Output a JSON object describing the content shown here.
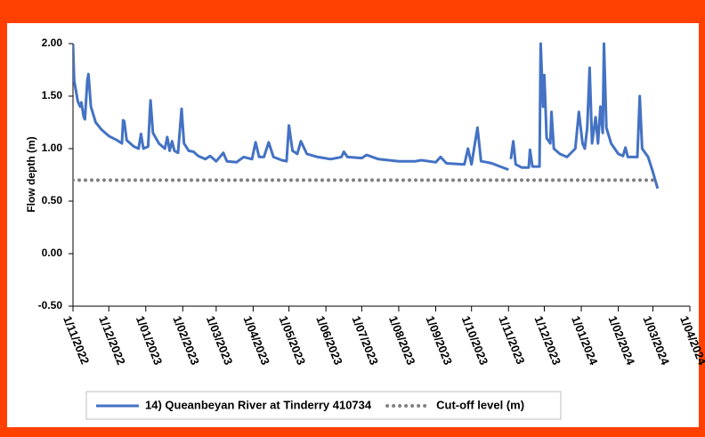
{
  "chart_data": {
    "type": "line",
    "y_label": "Flow depth (m)",
    "xlim": [
      "2022-11-01",
      "2024-04-01"
    ],
    "xticks": [
      {
        "value": "2022-11-01",
        "label": "1/11/2022"
      },
      {
        "value": "2022-12-01",
        "label": "1/12/2022"
      },
      {
        "value": "2023-01-01",
        "label": "1/01/2023"
      },
      {
        "value": "2023-02-01",
        "label": "1/02/2023"
      },
      {
        "value": "2023-03-01",
        "label": "1/03/2023"
      },
      {
        "value": "2023-04-01",
        "label": "1/04/2023"
      },
      {
        "value": "2023-05-01",
        "label": "1/05/2023"
      },
      {
        "value": "2023-06-01",
        "label": "1/06/2023"
      },
      {
        "value": "2023-07-01",
        "label": "1/07/2023"
      },
      {
        "value": "2023-08-01",
        "label": "1/08/2023"
      },
      {
        "value": "2023-09-01",
        "label": "1/09/2023"
      },
      {
        "value": "2023-10-01",
        "label": "1/10/2023"
      },
      {
        "value": "2023-11-01",
        "label": "1/11/2023"
      },
      {
        "value": "2023-12-01",
        "label": "1/12/2023"
      },
      {
        "value": "2024-01-01",
        "label": "1/01/2024"
      },
      {
        "value": "2024-02-01",
        "label": "1/02/2024"
      },
      {
        "value": "2024-03-01",
        "label": "1/03/2024"
      },
      {
        "value": "2024-04-01",
        "label": "1/04/2024"
      }
    ],
    "ylim": [
      -0.5,
      2.0
    ],
    "yticks": [
      {
        "value": -0.5,
        "label": "-0.50"
      },
      {
        "value": 0,
        "label": "0.00"
      },
      {
        "value": 0.5,
        "label": "0.50"
      },
      {
        "value": 1,
        "label": "1.00"
      },
      {
        "value": 1.5,
        "label": "1.50"
      },
      {
        "value": 2,
        "label": "2.00"
      }
    ],
    "grid": false,
    "legend": "bottom",
    "series": [
      {
        "name": "14) Queanbeyan River at Tinderry 410734",
        "color": "#4472c4",
        "style": "solid",
        "x": [
          "2022-11-01",
          "2022-11-02",
          "2022-11-05",
          "2022-11-07",
          "2022-11-08",
          "2022-11-10",
          "2022-11-11",
          "2022-11-13",
          "2022-11-14",
          "2022-11-16",
          "2022-11-20",
          "2022-11-25",
          "2022-12-01",
          "2022-12-08",
          "2022-12-12",
          "2022-12-13",
          "2022-12-14",
          "2022-12-16",
          "2022-12-22",
          "2022-12-26",
          "2022-12-28",
          "2022-12-30",
          "2023-01-03",
          "2023-01-05",
          "2023-01-07",
          "2023-01-12",
          "2023-01-17",
          "2023-01-19",
          "2023-01-21",
          "2023-01-23",
          "2023-01-25",
          "2023-01-28",
          "2023-01-31",
          "2023-02-02",
          "2023-02-06",
          "2023-02-10",
          "2023-02-14",
          "2023-02-20",
          "2023-02-24",
          "2023-03-01",
          "2023-03-07",
          "2023-03-10",
          "2023-03-18",
          "2023-03-24",
          "2023-03-31",
          "2023-04-03",
          "2023-04-06",
          "2023-04-10",
          "2023-04-14",
          "2023-04-18",
          "2023-04-25",
          "2023-04-29",
          "2023-05-01",
          "2023-05-04",
          "2023-05-08",
          "2023-05-11",
          "2023-05-16",
          "2023-05-25",
          "2023-06-05",
          "2023-06-14",
          "2023-06-16",
          "2023-06-19",
          "2023-07-01",
          "2023-07-05",
          "2023-07-15",
          "2023-08-01",
          "2023-08-15",
          "2023-08-20",
          "2023-09-01",
          "2023-09-05",
          "2023-09-10",
          "2023-09-25",
          "2023-09-28",
          "2023-10-01",
          "2023-10-06",
          "2023-10-09",
          "2023-10-14",
          "2023-10-18",
          "2023-10-25",
          "2023-11-01",
          "2023-11-02",
          "2023-11-03",
          "2023-11-05",
          "2023-11-07",
          "2023-11-12",
          "2023-11-18",
          "2023-11-19",
          "2023-11-21",
          "2023-11-27",
          "2023-11-28",
          "2023-11-30",
          "2023-12-01",
          "2023-12-03",
          "2023-12-06",
          "2023-12-07",
          "2023-12-09",
          "2023-12-14",
          "2023-12-20",
          "2023-12-27",
          "2023-12-30",
          "2024-01-02",
          "2024-01-04",
          "2024-01-06",
          "2024-01-08",
          "2024-01-10",
          "2024-01-13",
          "2024-01-15",
          "2024-01-17",
          "2024-01-19",
          "2024-01-20",
          "2024-01-22",
          "2024-01-26",
          "2024-02-01",
          "2024-02-05",
          "2024-02-07",
          "2024-02-09",
          "2024-02-17",
          "2024-02-19",
          "2024-02-21",
          "2024-02-26",
          "2024-03-01",
          "2024-03-05"
        ],
        "values": [
          2.0,
          1.65,
          1.45,
          1.4,
          1.44,
          1.3,
          1.28,
          1.65,
          1.71,
          1.4,
          1.25,
          1.18,
          1.12,
          1.08,
          1.05,
          1.27,
          1.26,
          1.08,
          1.02,
          1.0,
          1.14,
          1.0,
          1.02,
          1.46,
          1.15,
          1.05,
          1.0,
          1.11,
          0.98,
          1.07,
          0.98,
          0.96,
          1.38,
          1.05,
          0.98,
          0.97,
          0.93,
          0.9,
          0.93,
          0.88,
          0.96,
          0.88,
          0.87,
          0.92,
          0.9,
          1.06,
          0.92,
          0.92,
          1.06,
          0.92,
          0.89,
          0.88,
          1.22,
          0.98,
          0.95,
          1.07,
          0.95,
          0.92,
          0.9,
          0.92,
          0.97,
          0.92,
          0.91,
          0.94,
          0.9,
          0.88,
          0.88,
          0.89,
          0.87,
          0.92,
          0.86,
          0.85,
          1.0,
          0.85,
          1.2,
          0.88,
          0.87,
          0.86,
          0.83,
          0.8,
          null,
          0.9,
          1.07,
          0.85,
          0.82,
          0.82,
          0.99,
          0.83,
          0.83,
          2.0,
          1.4,
          1.7,
          1.1,
          1.05,
          1.35,
          1.0,
          0.95,
          0.92,
          1.0,
          1.35,
          1.05,
          1.0,
          1.2,
          1.77,
          1.05,
          1.3,
          1.05,
          1.4,
          1.15,
          2.0,
          1.2,
          1.05,
          0.95,
          0.93,
          1.01,
          0.92,
          0.92,
          1.5,
          1.0,
          0.92,
          0.78,
          0.62
        ]
      },
      {
        "name": "Cut-off level (m)",
        "color": "#808080",
        "style": "dotted",
        "x": [
          "2022-11-01",
          "2024-03-04"
        ],
        "values": [
          0.7,
          0.7
        ]
      }
    ]
  }
}
